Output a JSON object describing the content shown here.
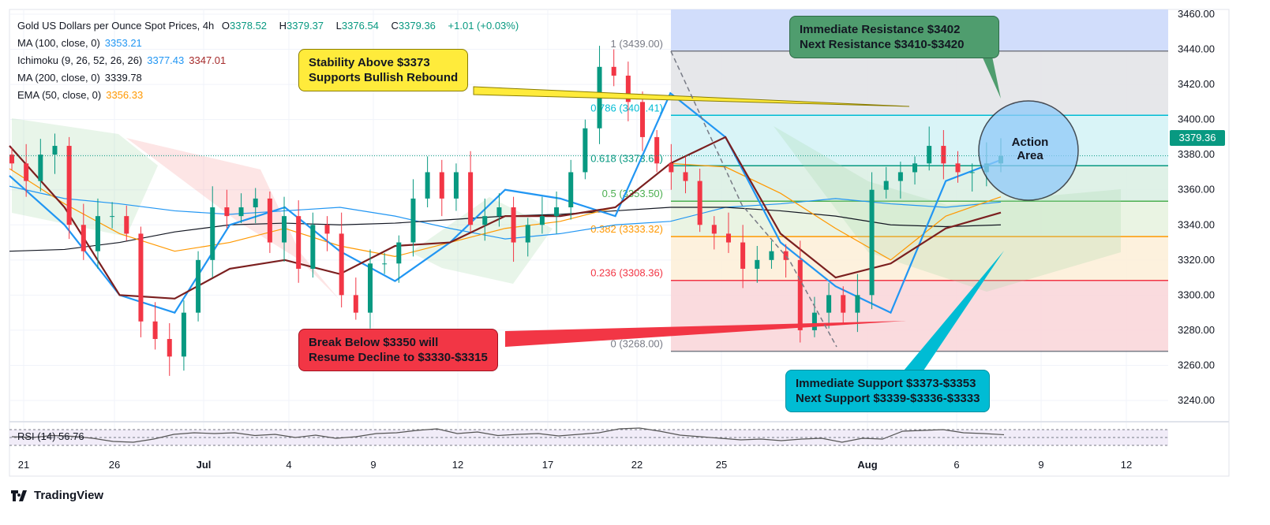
{
  "header": {
    "title": "Gold US Dollars per Ounce Spot Prices, 4h",
    "o_label": "O",
    "o": "3378.52",
    "h_label": "H",
    "h": "3379.37",
    "l_label": "L",
    "l": "3376.54",
    "c_label": "C",
    "c": "3379.36",
    "change": "+1.01 (+0.03%)"
  },
  "indicators": [
    {
      "label": "MA (100, close, 0)",
      "values": [
        "3353.21"
      ]
    },
    {
      "label": "Ichimoku (9, 26, 52, 26, 26)",
      "values": [
        "3377.43",
        "3347.01"
      ]
    },
    {
      "label": "MA (200, close, 0)",
      "values": [
        "3339.78"
      ]
    },
    {
      "label": "EMA (50, close, 0)",
      "values": [
        "3356.33"
      ]
    }
  ],
  "annotations": {
    "yellow": [
      "Stability Above $3373",
      "Supports Bullish Rebound"
    ],
    "green": [
      "Immediate Resistance $3402",
      "Next Resistance $3410-$3420"
    ],
    "red": [
      "Break Below $3350 will",
      "Resume Decline to $3330-$3315"
    ],
    "cyan": [
      "Immediate Support $3373-$3353",
      "Next Support $3339-$3336-$3333"
    ],
    "circle": [
      "Action",
      "Area"
    ]
  },
  "rsi": {
    "label": "RSI (14)",
    "value": "56.76",
    "values": [
      52,
      50,
      55,
      53,
      48,
      40,
      38,
      46,
      58,
      62,
      60,
      62,
      55,
      58,
      50,
      56,
      48,
      52,
      60,
      62,
      68,
      72,
      60,
      64,
      55,
      58,
      60,
      54,
      58,
      62,
      72,
      74,
      66,
      56,
      52,
      48,
      44,
      46,
      42,
      46,
      48,
      38,
      48,
      46,
      66,
      68,
      70,
      62,
      60,
      57
    ]
  },
  "brand": "TradingView",
  "colors": {
    "up": "#089981",
    "down": "#f23645",
    "ma100": "#2196f3",
    "ma200": "#131722",
    "ema50": "#ff9800",
    "tenkan": "#2196f3",
    "kijun": "#7b1f1f"
  },
  "chart_data": {
    "type": "candlestick",
    "title": "Gold US Dollars per Ounce Spot Prices, 4h",
    "ylim": [
      3230,
      3462
    ],
    "y_ticks": [
      3240,
      3260,
      3280,
      3300,
      3320,
      3340,
      3360,
      3380,
      3400,
      3420,
      3440,
      3460
    ],
    "y_tick_labels": [
      "3240.00",
      "3260.00",
      "3280.00",
      "3300.00",
      "3320.00",
      "3340.00",
      "3360.00",
      "3380.00",
      "3400.00",
      "3420.00",
      "3440.00",
      "3460.00"
    ],
    "x_ticks": [
      "21",
      "26",
      "Jul",
      "4",
      "9",
      "12",
      "17",
      "22",
      "25",
      "Aug",
      "6",
      "9",
      "12"
    ],
    "last_price": "3379.36",
    "closes": [
      3375,
      3365,
      3380,
      3385,
      3340,
      3325,
      3345,
      3345,
      3335,
      3285,
      3275,
      3265,
      3290,
      3320,
      3350,
      3345,
      3350,
      3355,
      3330,
      3345,
      3315,
      3340,
      3335,
      3300,
      3290,
      3318,
      3318,
      3330,
      3355,
      3370,
      3355,
      3370,
      3340,
      3345,
      3350,
      3330,
      3340,
      3345,
      3350,
      3370,
      3395,
      3430,
      3425,
      3410,
      3390,
      3375,
      3370,
      3365,
      3340,
      3335,
      3330,
      3315,
      3320,
      3325,
      3320,
      3280,
      3290,
      3300,
      3290,
      3300,
      3360,
      3365,
      3370,
      3375,
      3385,
      3375,
      3370,
      3370,
      3375,
      3379.36
    ],
    "ma100": [
      3362,
      3355,
      3352,
      3348,
      3346,
      3348,
      3350,
      3345,
      3338,
      3332,
      3335,
      3340,
      3342,
      3350,
      3352,
      3355,
      3352,
      3350,
      3353
    ],
    "ma200": [
      3325,
      3326,
      3330,
      3336,
      3340,
      3341,
      3340,
      3341,
      3343,
      3345,
      3346,
      3348,
      3350,
      3350,
      3348,
      3345,
      3340,
      3339,
      3340
    ],
    "ema50": [
      3372,
      3352,
      3335,
      3325,
      3330,
      3338,
      3328,
      3322,
      3330,
      3338,
      3342,
      3350,
      3375,
      3373,
      3358,
      3338,
      3320,
      3345,
      3356
    ],
    "tenkan": [
      3368,
      3340,
      3300,
      3290,
      3340,
      3350,
      3325,
      3308,
      3330,
      3360,
      3355,
      3345,
      3415,
      3390,
      3330,
      3305,
      3290,
      3365,
      3377
    ],
    "kijun": [
      3385,
      3350,
      3300,
      3298,
      3315,
      3320,
      3312,
      3328,
      3330,
      3345,
      3345,
      3350,
      3375,
      3390,
      3335,
      3310,
      3318,
      3338,
      3347
    ],
    "fib": {
      "levels": [
        {
          "ratio": "1",
          "price": 3439.0,
          "label": "1 (3439.00)",
          "color": "#787b86"
        },
        {
          "ratio": "0.786",
          "price": 3402.41,
          "label": "0.786 (3402.41)",
          "color": "#00bcd4"
        },
        {
          "ratio": "0.618",
          "price": 3373.68,
          "label": "0.618 (3373.68)",
          "color": "#089981"
        },
        {
          "ratio": "0.5",
          "price": 3353.5,
          "label": "0.5 (3353.50)",
          "color": "#4caf50"
        },
        {
          "ratio": "0.382",
          "price": 3333.32,
          "label": "0.382 (3333.32)",
          "color": "#ff9800"
        },
        {
          "ratio": "0.236",
          "price": 3308.36,
          "label": "0.236 (3308.36)",
          "color": "#f23645"
        },
        {
          "ratio": "0",
          "price": 3268.0,
          "label": "0 (3268.00)",
          "color": "#787b86"
        }
      ]
    }
  }
}
